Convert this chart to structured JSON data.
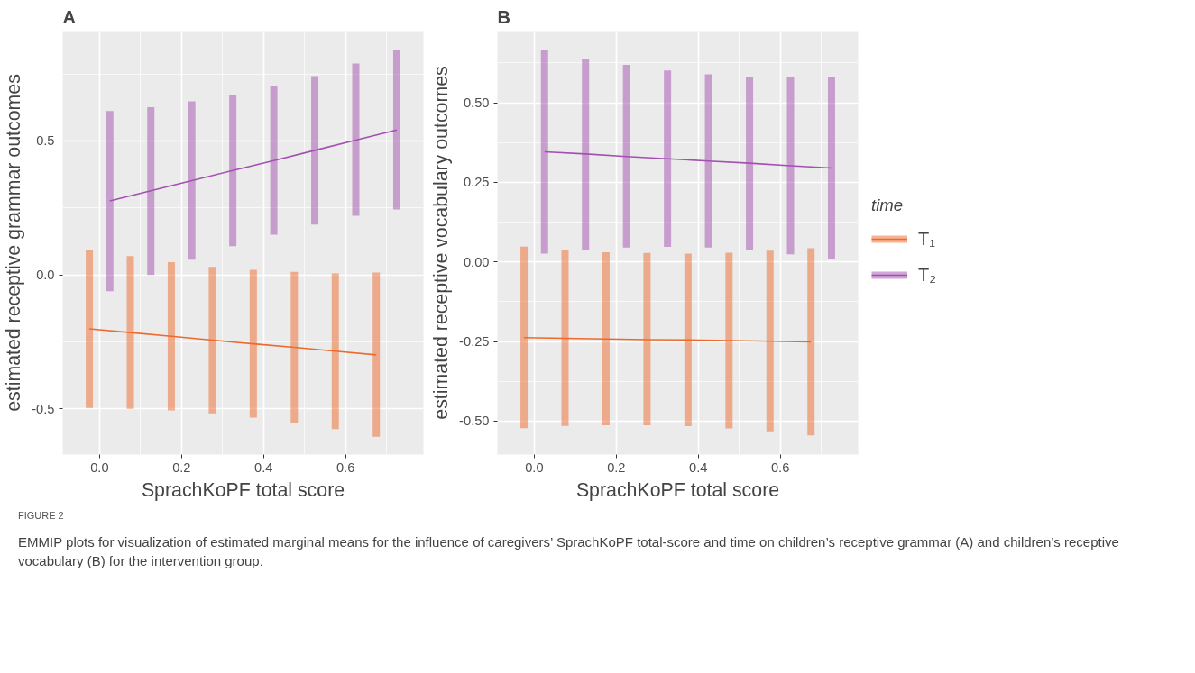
{
  "chart_data": [
    {
      "type": "line",
      "title": "A",
      "xlabel": "SprachKoPF total score",
      "ylabel": "estimated receptive grammar outcomes",
      "xlim": [
        -0.09,
        0.79
      ],
      "ylim": [
        -0.67,
        0.91
      ],
      "xticks": [
        {
          "value": 0,
          "label": "0.0"
        },
        {
          "value": 0.2,
          "label": "0.2"
        },
        {
          "value": 0.4,
          "label": "0.4"
        },
        {
          "value": 0.6,
          "label": "0.6"
        }
      ],
      "yticks": [
        {
          "value": -0.5,
          "label": "-0.5"
        },
        {
          "value": 0,
          "label": "0.0"
        },
        0.5
      ],
      "grid": true,
      "marker": "none",
      "line_style": "solid",
      "series": [
        {
          "color": "#ee6a2c",
          "x": [
            -0.025,
            0.075,
            0.175,
            0.275,
            0.375,
            0.475,
            0.575,
            0.675
          ],
          "values": [
            -0.201,
            -0.215,
            -0.229,
            -0.243,
            -0.257,
            -0.27,
            -0.284,
            -0.298
          ],
          "errors": [
            [
              -0.496,
              0.092
            ],
            [
              -0.499,
              0.07
            ],
            [
              -0.505,
              0.048
            ],
            [
              -0.516,
              0.03
            ],
            [
              -0.532,
              0.019
            ],
            [
              -0.551,
              0.012
            ],
            [
              -0.575,
              0.006
            ],
            [
              -0.604,
              0.009
            ]
          ]
        },
        {
          "color": "#a44fb2",
          "x": [
            0.025,
            0.125,
            0.225,
            0.325,
            0.425,
            0.525,
            0.625,
            0.725
          ],
          "values": [
            0.276,
            0.314,
            0.352,
            0.39,
            0.427,
            0.465,
            0.503,
            0.541
          ],
          "errors": [
            [
              -0.061,
              0.612
            ],
            [
              0.0,
              0.626
            ],
            [
              0.057,
              0.648
            ],
            [
              0.107,
              0.672
            ],
            [
              0.15,
              0.707
            ],
            [
              0.188,
              0.742
            ],
            [
              0.221,
              0.789
            ],
            [
              0.244,
              0.839
            ]
          ]
        }
      ],
      "annotations": [
        "FIGURE 2",
        "EMMIP plots for visualization of estimated marginal means for the influence of caregivers’ SprachKoPF total-score and time on children’s receptive grammar (A) and children’s receptive vocabulary (B) for the intervention group."
      ]
    },
    {
      "type": "line",
      "title": "B",
      "xlabel": "SprachKoPF total score",
      "ylabel": "estimated receptive vocabulary outcomes",
      "xlim": [
        -0.09,
        0.79
      ],
      "ylim": [
        -0.605,
        0.725
      ],
      "xticks": [
        {
          "value": 0,
          "label": "0.0"
        },
        {
          "value": 0.2,
          "label": "0.2"
        },
        {
          "value": 0.4,
          "label": "0.4"
        },
        {
          "value": 0.6,
          "label": "0.6"
        }
      ],
      "yticks": [
        {
          "value": -0.5,
          "label": "-0.50"
        },
        {
          "value": -0.25,
          "label": "-0.25"
        },
        {
          "value": 0,
          "label": "0.00"
        },
        {
          "value": 0.25,
          "label": "0.25"
        },
        {
          "value": 0.5,
          "label": "0.50"
        }
      ],
      "grid": true,
      "legend": "right",
      "legend_title": "time",
      "marker": "none",
      "line_style": "solid",
      "series": [
        {
          "name": "T₁",
          "color": "#ee6a2c",
          "x": [
            -0.025,
            0.075,
            0.175,
            0.275,
            0.375,
            0.475,
            0.575,
            0.675
          ],
          "values": [
            -0.238,
            -0.24,
            -0.242,
            -0.244,
            -0.245,
            -0.247,
            -0.249,
            -0.251
          ],
          "errors": [
            [
              -0.522,
              0.048
            ],
            [
              -0.515,
              0.038
            ],
            [
              -0.513,
              0.03
            ],
            [
              -0.513,
              0.028
            ],
            [
              -0.516,
              0.026
            ],
            [
              -0.523,
              0.029
            ],
            [
              -0.532,
              0.035
            ],
            [
              -0.545,
              0.043
            ]
          ]
        },
        {
          "name": "T₂",
          "color": "#a44fb2",
          "x": [
            0.025,
            0.125,
            0.225,
            0.325,
            0.425,
            0.525,
            0.625,
            0.725
          ],
          "values": [
            0.346,
            0.339,
            0.331,
            0.324,
            0.317,
            0.31,
            0.302,
            0.295
          ],
          "errors": [
            [
              0.026,
              0.665
            ],
            [
              0.037,
              0.639
            ],
            [
              0.045,
              0.619
            ],
            [
              0.047,
              0.601
            ],
            [
              0.045,
              0.589
            ],
            [
              0.037,
              0.582
            ],
            [
              0.024,
              0.58
            ],
            [
              0.008,
              0.582
            ]
          ]
        }
      ]
    }
  ]
}
